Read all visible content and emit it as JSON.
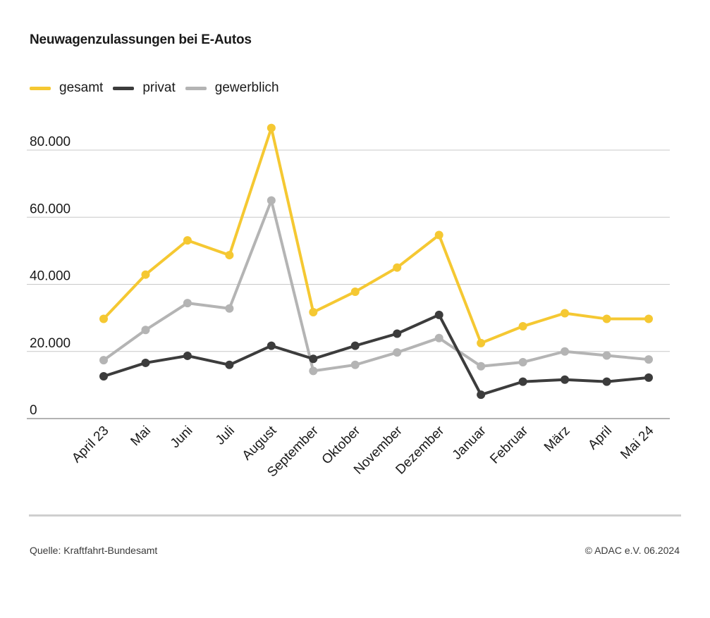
{
  "title": "Neuwagenzulassungen bei E-Autos",
  "source": "Quelle: Kraftfahrt-Bundesamt",
  "copyright": "© ADAC e.V. 06.2024",
  "chart_data": {
    "type": "line",
    "title": "Neuwagenzulassungen bei E-Autos",
    "xlabel": "",
    "ylabel": "",
    "ylim": [
      0,
      84000
    ],
    "yticks": [
      0,
      20000,
      40000,
      60000,
      80000
    ],
    "ytick_labels": [
      "0",
      "20.000",
      "40.000",
      "60.000",
      "80.000"
    ],
    "grid": true,
    "legend": "top-left",
    "categories": [
      "April 23",
      "Mai",
      "Juni",
      "Juli",
      "August",
      "September",
      "Oktober",
      "November",
      "Dezember",
      "Januar",
      "Februar",
      "März",
      "April",
      "Mai 24"
    ],
    "series": [
      {
        "name": "gesamt",
        "color": "#f5c832",
        "values": [
          29700,
          42900,
          53100,
          48700,
          86600,
          31700,
          37800,
          45000,
          54700,
          22500,
          27500,
          31400,
          29700,
          29700
        ]
      },
      {
        "name": "privat",
        "color": "#3c3c3c",
        "values": [
          12600,
          16600,
          18700,
          16000,
          21700,
          17800,
          21700,
          25300,
          30900,
          7100,
          11000,
          11600,
          11000,
          12200
        ]
      },
      {
        "name": "gewerblich",
        "color": "#b4b4b4",
        "values": [
          17400,
          26400,
          34400,
          32800,
          65000,
          14200,
          16000,
          19700,
          24000,
          15600,
          16800,
          20000,
          18800,
          17600
        ]
      }
    ]
  }
}
